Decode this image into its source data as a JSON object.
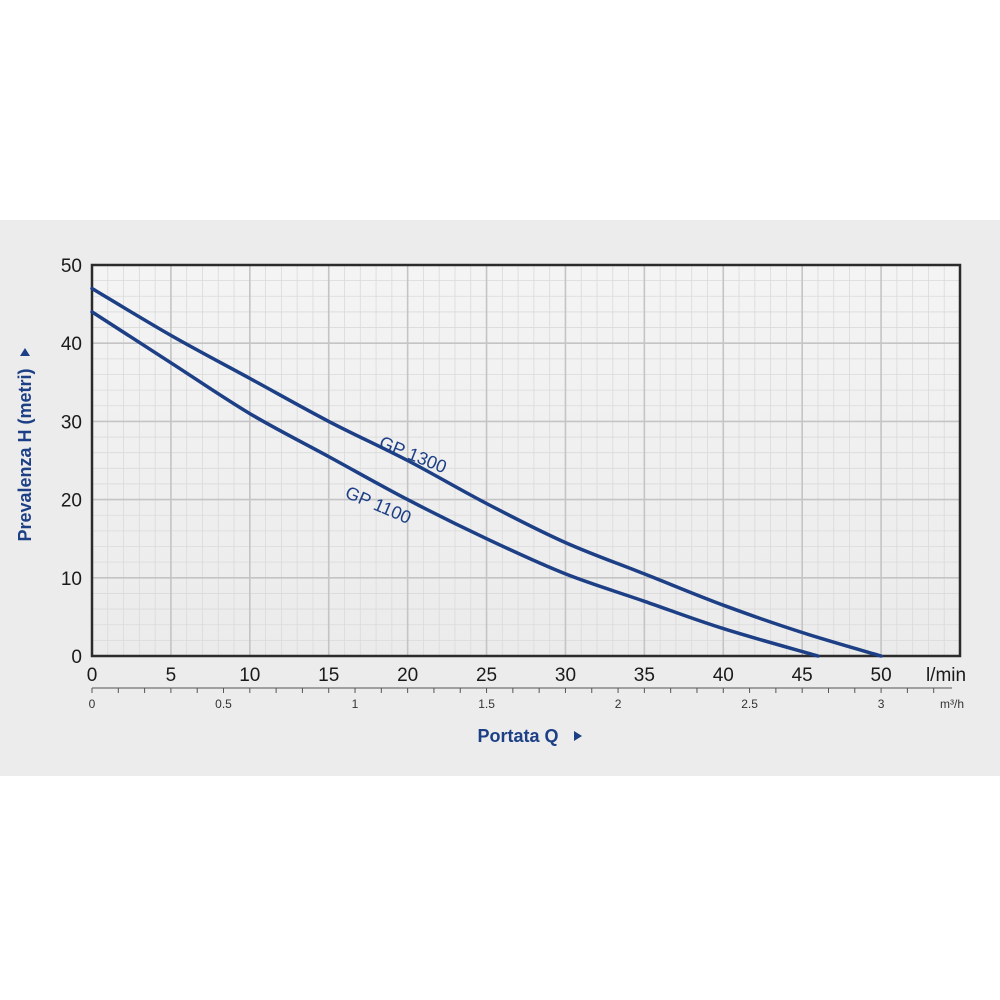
{
  "chart_data": {
    "type": "line",
    "xlabel": "Portata Q",
    "ylabel": "Prevalenza H (metri)",
    "x_unit": "l/min",
    "x2_unit": "m³/h",
    "xlim": [
      0,
      55
    ],
    "ylim": [
      0,
      50
    ],
    "x_ticks": [
      "0",
      "5",
      "10",
      "15",
      "20",
      "25",
      "30",
      "35",
      "40",
      "45",
      "50"
    ],
    "y_ticks": [
      "0",
      "10",
      "20",
      "30",
      "40",
      "50"
    ],
    "x2_ticks": [
      "0",
      "0.5",
      "1",
      "1.5",
      "2",
      "2.5",
      "3"
    ],
    "grid": true,
    "color": "#1d3f86",
    "series": [
      {
        "name": "GP 1300",
        "x": [
          0,
          5,
          10,
          15,
          20,
          25,
          30,
          35,
          40,
          45,
          50
        ],
        "y": [
          47,
          41,
          35.5,
          30,
          25,
          19.5,
          14.5,
          10.5,
          6.5,
          3,
          0
        ]
      },
      {
        "name": "GP 1100",
        "x": [
          0,
          5,
          10,
          15,
          20,
          25,
          30,
          35,
          40,
          46
        ],
        "y": [
          44,
          37.5,
          31,
          25.5,
          20,
          15,
          10.5,
          7,
          3.5,
          0
        ]
      }
    ]
  }
}
